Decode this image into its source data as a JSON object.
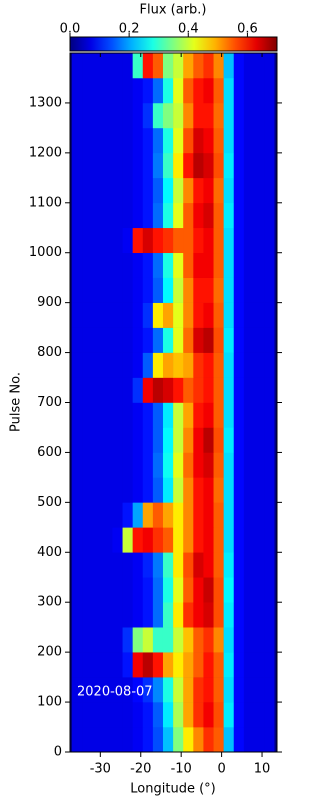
{
  "chart_data": {
    "type": "heatmap",
    "colorbar_label": "Flux (arb.)",
    "xlabel": "Longitude (°)",
    "ylabel": "Pulse No.",
    "annotation": "2020-08-07",
    "colormap": "jet",
    "clim": [
      0,
      0.7
    ],
    "cticks": [
      {
        "value": 0,
        "label": "0.0"
      },
      0.2,
      0.4,
      0.6
    ],
    "xlim": [
      -37.5,
      13.7
    ],
    "xticks": [
      -30,
      -20,
      -10,
      0,
      10
    ],
    "ylim": [
      0,
      1400
    ],
    "yticks": [
      0,
      100,
      200,
      300,
      400,
      500,
      600,
      700,
      800,
      900,
      1000,
      1100,
      1200,
      1300
    ],
    "x": [
      -35.75,
      -33.25,
      -30.75,
      -28.25,
      -25.75,
      -23.25,
      -20.75,
      -18.25,
      -15.75,
      -13.25,
      -10.75,
      -8.25,
      -5.75,
      -3.25,
      -0.75,
      1.75,
      4.25,
      6.75,
      9.25,
      11.75
    ],
    "y": [
      25,
      75,
      125,
      175,
      225,
      275,
      325,
      375,
      425,
      475,
      525,
      575,
      625,
      675,
      725,
      775,
      825,
      875,
      925,
      975,
      1025,
      1075,
      1125,
      1175,
      1225,
      1275,
      1325,
      1375
    ],
    "values": [
      [
        0.07,
        0.07,
        0.07,
        0.07,
        0.07,
        0.07,
        0.08,
        0.1,
        0.14,
        0.22,
        0.35,
        0.45,
        0.52,
        0.58,
        0.55,
        0.22,
        0.09,
        0.07,
        0.07,
        0.07
      ],
      [
        0.07,
        0.07,
        0.07,
        0.07,
        0.07,
        0.07,
        0.08,
        0.1,
        0.15,
        0.25,
        0.38,
        0.5,
        0.58,
        0.62,
        0.56,
        0.25,
        0.09,
        0.07,
        0.07,
        0.07
      ],
      [
        0.07,
        0.07,
        0.07,
        0.07,
        0.07,
        0.07,
        0.09,
        0.12,
        0.18,
        0.28,
        0.4,
        0.5,
        0.58,
        0.6,
        0.55,
        0.24,
        0.09,
        0.07,
        0.07,
        0.07
      ],
      [
        0.07,
        0.07,
        0.07,
        0.07,
        0.07,
        0.1,
        0.62,
        0.66,
        0.6,
        0.5,
        0.45,
        0.5,
        0.55,
        0.6,
        0.55,
        0.25,
        0.09,
        0.07,
        0.07,
        0.07
      ],
      [
        0.07,
        0.07,
        0.07,
        0.07,
        0.07,
        0.12,
        0.35,
        0.4,
        0.3,
        0.3,
        0.4,
        0.48,
        0.55,
        0.58,
        0.52,
        0.24,
        0.09,
        0.07,
        0.07,
        0.07
      ],
      [
        0.07,
        0.07,
        0.07,
        0.07,
        0.07,
        0.07,
        0.08,
        0.1,
        0.16,
        0.3,
        0.45,
        0.58,
        0.62,
        0.64,
        0.56,
        0.25,
        0.09,
        0.07,
        0.07,
        0.07
      ],
      [
        0.07,
        0.07,
        0.07,
        0.07,
        0.07,
        0.07,
        0.08,
        0.1,
        0.16,
        0.28,
        0.42,
        0.55,
        0.62,
        0.65,
        0.56,
        0.26,
        0.09,
        0.07,
        0.07,
        0.07
      ],
      [
        0.07,
        0.07,
        0.07,
        0.07,
        0.07,
        0.07,
        0.08,
        0.11,
        0.17,
        0.3,
        0.45,
        0.56,
        0.64,
        0.62,
        0.55,
        0.25,
        0.09,
        0.07,
        0.07,
        0.07
      ],
      [
        0.07,
        0.07,
        0.07,
        0.07,
        0.08,
        0.4,
        0.6,
        0.62,
        0.58,
        0.55,
        0.45,
        0.52,
        0.6,
        0.62,
        0.55,
        0.24,
        0.09,
        0.07,
        0.07,
        0.07
      ],
      [
        0.07,
        0.07,
        0.07,
        0.07,
        0.07,
        0.1,
        0.2,
        0.5,
        0.55,
        0.5,
        0.45,
        0.52,
        0.6,
        0.62,
        0.55,
        0.24,
        0.09,
        0.07,
        0.07,
        0.07
      ],
      [
        0.07,
        0.07,
        0.07,
        0.07,
        0.07,
        0.07,
        0.08,
        0.1,
        0.15,
        0.25,
        0.4,
        0.52,
        0.6,
        0.62,
        0.54,
        0.24,
        0.09,
        0.07,
        0.07,
        0.07
      ],
      [
        0.07,
        0.07,
        0.07,
        0.07,
        0.07,
        0.07,
        0.08,
        0.1,
        0.16,
        0.27,
        0.42,
        0.54,
        0.62,
        0.64,
        0.55,
        0.24,
        0.09,
        0.07,
        0.07,
        0.07
      ],
      [
        0.07,
        0.07,
        0.07,
        0.07,
        0.07,
        0.07,
        0.08,
        0.1,
        0.15,
        0.26,
        0.4,
        0.52,
        0.62,
        0.66,
        0.56,
        0.25,
        0.09,
        0.07,
        0.07,
        0.07
      ],
      [
        0.07,
        0.07,
        0.07,
        0.07,
        0.07,
        0.07,
        0.08,
        0.1,
        0.15,
        0.25,
        0.4,
        0.5,
        0.6,
        0.62,
        0.55,
        0.24,
        0.09,
        0.07,
        0.07,
        0.07
      ],
      [
        0.07,
        0.07,
        0.07,
        0.07,
        0.07,
        0.07,
        0.12,
        0.62,
        0.66,
        0.64,
        0.6,
        0.55,
        0.58,
        0.6,
        0.55,
        0.24,
        0.09,
        0.07,
        0.07,
        0.07
      ],
      [
        0.07,
        0.07,
        0.07,
        0.07,
        0.07,
        0.07,
        0.08,
        0.15,
        0.45,
        0.5,
        0.48,
        0.5,
        0.58,
        0.6,
        0.55,
        0.24,
        0.09,
        0.07,
        0.07,
        0.07
      ],
      [
        0.07,
        0.07,
        0.07,
        0.07,
        0.07,
        0.07,
        0.08,
        0.1,
        0.16,
        0.28,
        0.42,
        0.54,
        0.64,
        0.66,
        0.56,
        0.25,
        0.09,
        0.07,
        0.07,
        0.07
      ],
      [
        0.07,
        0.07,
        0.07,
        0.07,
        0.07,
        0.07,
        0.08,
        0.12,
        0.45,
        0.5,
        0.42,
        0.52,
        0.6,
        0.62,
        0.55,
        0.24,
        0.09,
        0.07,
        0.07,
        0.07
      ],
      [
        0.07,
        0.07,
        0.07,
        0.07,
        0.07,
        0.07,
        0.08,
        0.1,
        0.15,
        0.26,
        0.4,
        0.52,
        0.6,
        0.6,
        0.54,
        0.24,
        0.09,
        0.07,
        0.07,
        0.07
      ],
      [
        0.07,
        0.07,
        0.07,
        0.07,
        0.07,
        0.07,
        0.08,
        0.1,
        0.16,
        0.28,
        0.42,
        0.55,
        0.62,
        0.62,
        0.55,
        0.24,
        0.09,
        0.07,
        0.07,
        0.07
      ],
      [
        0.07,
        0.07,
        0.07,
        0.07,
        0.07,
        0.08,
        0.6,
        0.64,
        0.6,
        0.58,
        0.55,
        0.55,
        0.6,
        0.62,
        0.55,
        0.24,
        0.09,
        0.07,
        0.07,
        0.07
      ],
      [
        0.07,
        0.07,
        0.07,
        0.07,
        0.07,
        0.07,
        0.08,
        0.1,
        0.16,
        0.28,
        0.42,
        0.55,
        0.62,
        0.64,
        0.55,
        0.25,
        0.09,
        0.07,
        0.07,
        0.07
      ],
      [
        0.07,
        0.07,
        0.07,
        0.07,
        0.07,
        0.07,
        0.08,
        0.1,
        0.15,
        0.26,
        0.4,
        0.52,
        0.6,
        0.62,
        0.54,
        0.24,
        0.09,
        0.07,
        0.07,
        0.07
      ],
      [
        0.07,
        0.07,
        0.07,
        0.07,
        0.07,
        0.07,
        0.08,
        0.1,
        0.17,
        0.3,
        0.45,
        0.6,
        0.66,
        0.64,
        0.56,
        0.25,
        0.09,
        0.07,
        0.07,
        0.07
      ],
      [
        0.07,
        0.07,
        0.07,
        0.07,
        0.07,
        0.07,
        0.08,
        0.1,
        0.16,
        0.28,
        0.42,
        0.56,
        0.64,
        0.62,
        0.55,
        0.24,
        0.09,
        0.07,
        0.07,
        0.07
      ],
      [
        0.07,
        0.07,
        0.07,
        0.07,
        0.07,
        0.07,
        0.08,
        0.12,
        0.3,
        0.35,
        0.4,
        0.52,
        0.6,
        0.6,
        0.54,
        0.24,
        0.09,
        0.07,
        0.07,
        0.07
      ],
      [
        0.07,
        0.07,
        0.07,
        0.07,
        0.07,
        0.07,
        0.08,
        0.1,
        0.16,
        0.28,
        0.42,
        0.55,
        0.6,
        0.62,
        0.55,
        0.24,
        0.09,
        0.07,
        0.07,
        0.07
      ],
      [
        0.07,
        0.07,
        0.07,
        0.07,
        0.07,
        0.07,
        0.3,
        0.6,
        0.55,
        0.35,
        0.4,
        0.5,
        0.55,
        0.58,
        0.52,
        0.22,
        0.09,
        0.07,
        0.07,
        0.07
      ]
    ]
  }
}
